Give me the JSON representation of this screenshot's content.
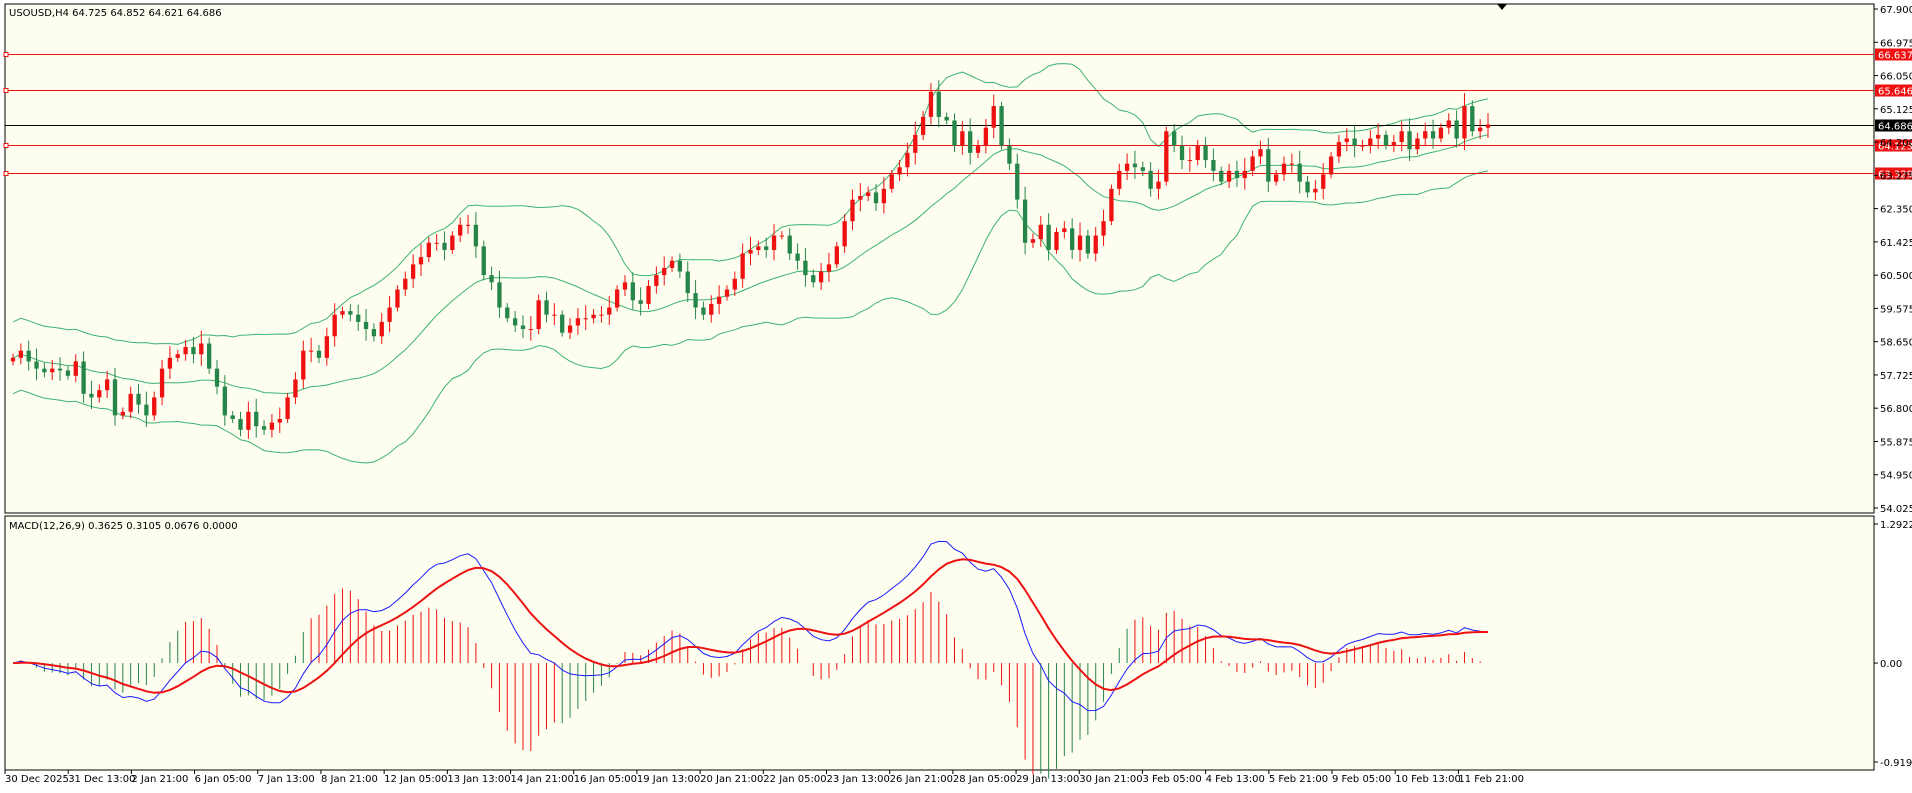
{
  "symbol_header": "USOUSD,H4  64.725 64.852 64.621 64.686",
  "macd_header": "MACD(12,26,9) 0.3625 0.3105 0.0676 0.0000",
  "colors": {
    "background": "#fefef0",
    "bull": "#26864a",
    "bear": "#ee1111",
    "bands": "#3cb371",
    "macd_line": "#1a1aff",
    "signal_line": "#ee1111",
    "hist_pos": "#ee1111",
    "hist_neg": "#26864a",
    "level": "#ee1111",
    "current_price": "#000000"
  },
  "chart_data": [
    {
      "type": "candlestick",
      "title": "",
      "price_axis": [
        "67.900",
        "66.975",
        "66.050",
        "65.125",
        "64.200",
        "63.275",
        "62.350",
        "61.425",
        "60.500",
        "59.575",
        "58.650",
        "57.725",
        "56.800",
        "55.875",
        "54.950",
        "54.025"
      ],
      "ylim": [
        54.025,
        67.9
      ],
      "current_price": {
        "value": 64.686,
        "label": "64.686"
      },
      "levels": [
        {
          "value": 66.637,
          "label": "66.637"
        },
        {
          "value": 65.646,
          "label": "65.646"
        },
        {
          "value": 64.123,
          "label": "64.123"
        },
        {
          "value": 63.329,
          "label": "63.329"
        }
      ],
      "time_labels": [
        "30 Dec 2025",
        "31 Dec 13:00",
        "2 Jan 21:00",
        "6 Jan 05:00",
        "7 Jan 13:00",
        "8 Jan 21:00",
        "12 Jan 05:00",
        "13 Jan 13:00",
        "14 Jan 21:00",
        "16 Jan 05:00",
        "19 Jan 13:00",
        "20 Jan 21:00",
        "22 Jan 05:00",
        "23 Jan 13:00",
        "26 Jan 21:00",
        "28 Jan 05:00",
        "29 Jan 13:00",
        "30 Jan 21:00",
        "3 Feb 05:00",
        "4 Feb 13:00",
        "5 Feb 21:00",
        "9 Feb 05:00",
        "10 Feb 13:00",
        "11 Feb 21:00"
      ],
      "close": [
        58.2,
        58.4,
        58.1,
        57.9,
        57.8,
        57.9,
        57.85,
        57.7,
        58.1,
        57.2,
        57.1,
        57.3,
        57.6,
        56.6,
        56.7,
        57.2,
        56.9,
        56.6,
        57.1,
        57.9,
        58.2,
        58.3,
        58.5,
        58.3,
        58.6,
        57.9,
        57.4,
        56.6,
        56.5,
        56.2,
        56.7,
        56.3,
        56.2,
        56.4,
        56.5,
        57.1,
        57.6,
        58.4,
        58.4,
        58.2,
        58.8,
        59.4,
        59.5,
        59.4,
        59.2,
        59.0,
        58.8,
        59.2,
        59.6,
        60.1,
        60.4,
        60.8,
        61.0,
        61.4,
        61.4,
        61.2,
        61.6,
        61.9,
        61.9,
        61.3,
        60.5,
        60.3,
        59.6,
        59.3,
        59.1,
        59.0,
        59.0,
        59.8,
        59.4,
        59.4,
        58.9,
        59.1,
        59.3,
        59.3,
        59.4,
        59.4,
        59.6,
        60.1,
        60.3,
        59.8,
        59.7,
        60.2,
        60.5,
        60.7,
        60.9,
        60.6,
        60.0,
        59.6,
        59.4,
        59.7,
        59.9,
        60.1,
        60.4,
        61.1,
        61.2,
        61.3,
        61.2,
        61.6,
        61.6,
        61.1,
        60.9,
        60.5,
        60.3,
        60.6,
        60.8,
        61.3,
        62.0,
        62.6,
        62.7,
        62.8,
        62.5,
        62.9,
        63.3,
        63.5,
        63.9,
        64.4,
        64.9,
        65.6,
        64.9,
        64.8,
        64.1,
        64.5,
        63.9,
        64.1,
        64.6,
        65.2,
        64.1,
        63.6,
        62.6,
        61.4,
        61.5,
        61.9,
        61.2,
        61.7,
        61.8,
        61.2,
        61.6,
        61.1,
        61.6,
        62.0,
        62.9,
        63.4,
        63.6,
        63.5,
        63.4,
        62.9,
        63.1,
        64.5,
        64.1,
        63.7,
        63.7,
        64.1,
        63.7,
        63.4,
        63.1,
        63.4,
        63.2,
        63.4,
        63.8,
        64.0,
        63.1,
        63.3,
        63.6,
        63.6,
        63.1,
        62.8,
        62.9,
        63.3,
        63.8,
        64.2,
        64.3,
        64.1,
        64.1,
        64.3,
        64.4,
        64.1,
        64.2,
        64.5,
        64.0,
        64.3,
        64.5,
        64.3,
        64.6,
        64.8,
        64.3,
        65.2,
        64.5,
        64.6,
        64.686
      ],
      "bollinger": {
        "period": 20
      },
      "last_visible_index": 200
    },
    {
      "type": "macd",
      "title": "MACD(12,26,9)",
      "params": [
        12,
        26,
        9
      ],
      "values": {
        "macd": 0.3625,
        "signal": 0.3105,
        "histogram": 0.0676
      },
      "axis_labels": [
        "1.2922",
        "0.00",
        "-0.9194"
      ],
      "ylim": [
        -0.9194,
        1.2922
      ]
    }
  ]
}
